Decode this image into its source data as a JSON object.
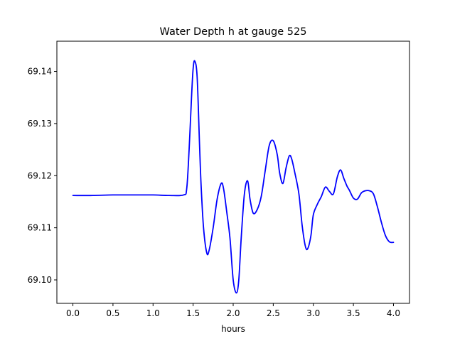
{
  "chart_data": {
    "type": "line",
    "title": "Water Depth h at gauge 525",
    "xlabel": "hours",
    "ylabel": "",
    "xlim": [
      -0.2,
      4.2
    ],
    "ylim": [
      69.0955,
      69.1458
    ],
    "xticks": [
      0.0,
      0.5,
      1.0,
      1.5,
      2.0,
      2.5,
      3.0,
      3.5,
      4.0
    ],
    "xtick_labels": [
      "0.0",
      "0.5",
      "1.0",
      "1.5",
      "2.0",
      "2.5",
      "3.0",
      "3.5",
      "4.0"
    ],
    "yticks": [
      69.1,
      69.11,
      69.12,
      69.13,
      69.14
    ],
    "ytick_labels": [
      "69.10",
      "69.11",
      "69.12",
      "69.13",
      "69.14"
    ],
    "grid": false,
    "series": [
      {
        "color": "#0000ff",
        "x": [
          0.0,
          0.25,
          0.5,
          0.75,
          1.0,
          1.2,
          1.38,
          1.42,
          1.45,
          1.48,
          1.5,
          1.52,
          1.55,
          1.58,
          1.6,
          1.63,
          1.67,
          1.7,
          1.75,
          1.8,
          1.85,
          1.88,
          1.92,
          1.96,
          2.0,
          2.04,
          2.07,
          2.1,
          2.14,
          2.18,
          2.21,
          2.25,
          2.3,
          2.35,
          2.4,
          2.45,
          2.5,
          2.55,
          2.58,
          2.62,
          2.66,
          2.7,
          2.73,
          2.77,
          2.82,
          2.86,
          2.9,
          2.93,
          2.97,
          3.0,
          3.05,
          3.1,
          3.15,
          3.2,
          3.25,
          3.3,
          3.34,
          3.38,
          3.42,
          3.45,
          3.5,
          3.55,
          3.6,
          3.65,
          3.7,
          3.75,
          3.8,
          3.85,
          3.9,
          3.95,
          4.0
        ],
        "y": [
          69.1162,
          69.1162,
          69.1163,
          69.1163,
          69.1163,
          69.1162,
          69.1163,
          69.1175,
          69.125,
          69.135,
          69.1405,
          69.142,
          69.139,
          69.126,
          69.118,
          69.11,
          69.1052,
          69.1057,
          69.11,
          69.1155,
          69.1185,
          69.1175,
          69.113,
          69.108,
          69.1,
          69.0975,
          69.1,
          69.108,
          69.1165,
          69.119,
          69.1155,
          69.1128,
          69.1135,
          69.116,
          69.121,
          69.1258,
          69.1267,
          69.124,
          69.1205,
          69.1185,
          69.1215,
          69.1238,
          69.1232,
          69.1205,
          69.1165,
          69.1105,
          69.1065,
          69.106,
          69.1085,
          69.1125,
          69.1145,
          69.116,
          69.1178,
          69.117,
          69.1165,
          69.1198,
          69.1211,
          69.1195,
          69.118,
          69.1172,
          69.1157,
          69.1155,
          69.1167,
          69.1171,
          69.1171,
          69.1165,
          69.114,
          69.111,
          69.1085,
          69.1073,
          69.1072
        ]
      }
    ]
  }
}
